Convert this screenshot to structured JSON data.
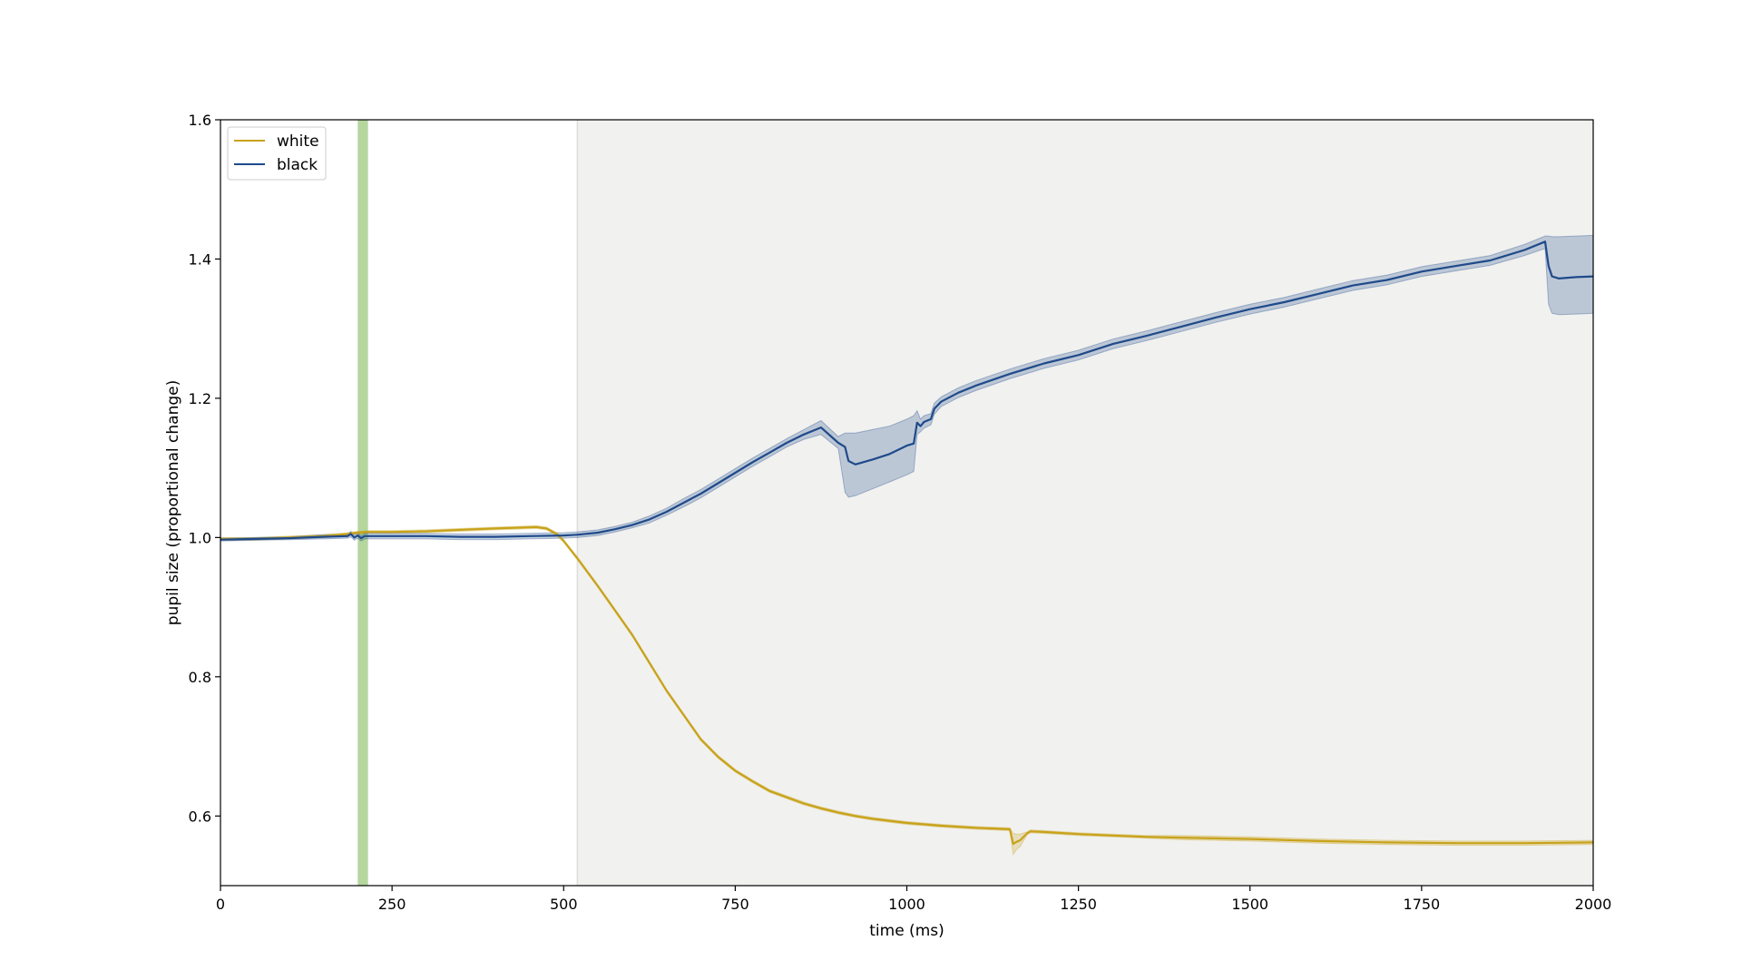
{
  "chart_data": {
    "type": "line",
    "title": "",
    "xlabel": "time (ms)",
    "ylabel": "pupil size (proportional change)",
    "xlim": [
      0,
      2000
    ],
    "ylim": [
      0.5,
      1.6
    ],
    "xticks": [
      0,
      250,
      500,
      750,
      1000,
      1250,
      1500,
      1750,
      2000
    ],
    "xtick_labels": [
      "0",
      "250",
      "500",
      "750",
      "1000",
      "1250",
      "1500",
      "1750",
      "2000"
    ],
    "yticks": [
      0.6,
      0.8,
      1.0,
      1.2,
      1.4,
      1.6
    ],
    "ytick_labels": [
      "0.6",
      "0.8",
      "1.0",
      "1.2",
      "1.4",
      "1.6"
    ],
    "grid": false,
    "legend": {
      "position": "top-left",
      "entries": [
        "white",
        "black"
      ]
    },
    "shaded_regions": [
      {
        "x0": 200,
        "x1": 215,
        "color": "#9cc97e",
        "opacity": 0.75
      },
      {
        "x0": 520,
        "x1": 2000,
        "color": "#e9e9e6",
        "opacity": 0.65
      }
    ],
    "series": [
      {
        "name": "white",
        "color": "#c8a21a",
        "x": [
          0,
          50,
          100,
          150,
          185,
          200,
          215,
          250,
          300,
          350,
          400,
          430,
          460,
          475,
          490,
          500,
          520,
          550,
          575,
          600,
          625,
          650,
          675,
          700,
          725,
          750,
          775,
          800,
          825,
          850,
          875,
          900,
          925,
          950,
          975,
          1000,
          1050,
          1100,
          1150,
          1155,
          1160,
          1165,
          1175,
          1180,
          1200,
          1250,
          1300,
          1350,
          1400,
          1500,
          1600,
          1700,
          1800,
          1900,
          2000
        ],
        "y": [
          0.998,
          0.998,
          1.0,
          1.002,
          1.005,
          1.007,
          1.008,
          1.008,
          1.009,
          1.011,
          1.013,
          1.014,
          1.015,
          1.013,
          1.005,
          0.995,
          0.97,
          0.93,
          0.895,
          0.86,
          0.82,
          0.78,
          0.745,
          0.71,
          0.685,
          0.665,
          0.65,
          0.636,
          0.627,
          0.618,
          0.611,
          0.605,
          0.6,
          0.596,
          0.593,
          0.59,
          0.586,
          0.583,
          0.581,
          0.56,
          0.563,
          0.565,
          0.575,
          0.578,
          0.577,
          0.574,
          0.572,
          0.57,
          0.569,
          0.567,
          0.564,
          0.562,
          0.561,
          0.561,
          0.562
        ],
        "ci_lower": [
          0.996,
          0.996,
          0.998,
          1.0,
          1.003,
          1.005,
          1.006,
          1.006,
          1.007,
          1.009,
          1.011,
          1.012,
          1.013,
          1.011,
          1.003,
          0.993,
          0.968,
          0.928,
          0.893,
          0.858,
          0.818,
          0.778,
          0.743,
          0.708,
          0.683,
          0.663,
          0.648,
          0.634,
          0.625,
          0.616,
          0.609,
          0.603,
          0.598,
          0.594,
          0.591,
          0.588,
          0.584,
          0.581,
          0.579,
          0.545,
          0.552,
          0.556,
          0.573,
          0.576,
          0.575,
          0.572,
          0.57,
          0.568,
          0.566,
          0.564,
          0.561,
          0.559,
          0.558,
          0.558,
          0.559
        ],
        "ci_upper": [
          1.0,
          1.0,
          1.002,
          1.004,
          1.007,
          1.009,
          1.01,
          1.01,
          1.011,
          1.013,
          1.015,
          1.016,
          1.017,
          1.015,
          1.007,
          0.997,
          0.972,
          0.932,
          0.897,
          0.862,
          0.822,
          0.782,
          0.747,
          0.712,
          0.687,
          0.667,
          0.652,
          0.638,
          0.629,
          0.62,
          0.613,
          0.607,
          0.602,
          0.598,
          0.595,
          0.592,
          0.588,
          0.585,
          0.583,
          0.575,
          0.574,
          0.574,
          0.577,
          0.58,
          0.579,
          0.576,
          0.574,
          0.572,
          0.572,
          0.57,
          0.567,
          0.565,
          0.564,
          0.564,
          0.565
        ]
      },
      {
        "name": "black",
        "color": "#1f4a8a",
        "x": [
          0,
          50,
          100,
          150,
          185,
          190,
          195,
          200,
          205,
          210,
          215,
          250,
          300,
          350,
          400,
          450,
          500,
          520,
          550,
          575,
          600,
          625,
          650,
          675,
          700,
          725,
          750,
          775,
          800,
          825,
          850,
          875,
          900,
          910,
          915,
          925,
          950,
          975,
          1000,
          1010,
          1015,
          1020,
          1025,
          1035,
          1040,
          1050,
          1075,
          1100,
          1150,
          1200,
          1250,
          1300,
          1350,
          1400,
          1450,
          1500,
          1550,
          1600,
          1650,
          1700,
          1750,
          1800,
          1850,
          1900,
          1930,
          1935,
          1940,
          1950,
          1975,
          2000
        ],
        "y": [
          0.997,
          0.998,
          0.999,
          1.001,
          1.002,
          1.005,
          1.0,
          1.003,
          0.999,
          1.002,
          1.002,
          1.002,
          1.002,
          1.001,
          1.001,
          1.002,
          1.003,
          1.004,
          1.007,
          1.012,
          1.018,
          1.026,
          1.037,
          1.05,
          1.063,
          1.078,
          1.093,
          1.108,
          1.122,
          1.136,
          1.148,
          1.158,
          1.136,
          1.13,
          1.11,
          1.105,
          1.112,
          1.12,
          1.132,
          1.135,
          1.165,
          1.16,
          1.166,
          1.17,
          1.185,
          1.195,
          1.208,
          1.218,
          1.235,
          1.25,
          1.262,
          1.278,
          1.29,
          1.303,
          1.316,
          1.328,
          1.338,
          1.35,
          1.362,
          1.37,
          1.382,
          1.39,
          1.398,
          1.413,
          1.425,
          1.39,
          1.375,
          1.372,
          1.374,
          1.375
        ],
        "ci_lower": [
          0.995,
          0.996,
          0.997,
          0.998,
          0.999,
          1.001,
          0.996,
          0.999,
          0.995,
          0.998,
          0.998,
          0.998,
          0.998,
          0.997,
          0.997,
          0.998,
          0.999,
          1.0,
          1.003,
          1.008,
          1.014,
          1.021,
          1.032,
          1.044,
          1.057,
          1.072,
          1.087,
          1.102,
          1.116,
          1.13,
          1.141,
          1.148,
          1.128,
          1.065,
          1.058,
          1.06,
          1.07,
          1.08,
          1.09,
          1.095,
          1.148,
          1.152,
          1.157,
          1.162,
          1.177,
          1.188,
          1.201,
          1.211,
          1.228,
          1.243,
          1.255,
          1.271,
          1.283,
          1.296,
          1.309,
          1.321,
          1.331,
          1.343,
          1.355,
          1.363,
          1.375,
          1.383,
          1.391,
          1.405,
          1.415,
          1.335,
          1.322,
          1.32,
          1.321,
          1.322
        ],
        "ci_upper": [
          0.999,
          1.0,
          1.001,
          1.004,
          1.005,
          1.009,
          1.004,
          1.007,
          1.003,
          1.006,
          1.006,
          1.006,
          1.006,
          1.005,
          1.005,
          1.006,
          1.007,
          1.008,
          1.011,
          1.016,
          1.022,
          1.031,
          1.042,
          1.056,
          1.069,
          1.084,
          1.099,
          1.114,
          1.128,
          1.142,
          1.155,
          1.168,
          1.145,
          1.15,
          1.15,
          1.15,
          1.155,
          1.16,
          1.17,
          1.175,
          1.182,
          1.17,
          1.175,
          1.178,
          1.193,
          1.202,
          1.215,
          1.225,
          1.242,
          1.257,
          1.269,
          1.285,
          1.297,
          1.31,
          1.323,
          1.335,
          1.345,
          1.357,
          1.369,
          1.377,
          1.389,
          1.397,
          1.405,
          1.421,
          1.433,
          1.433,
          1.432,
          1.432,
          1.433,
          1.434
        ]
      }
    ]
  }
}
